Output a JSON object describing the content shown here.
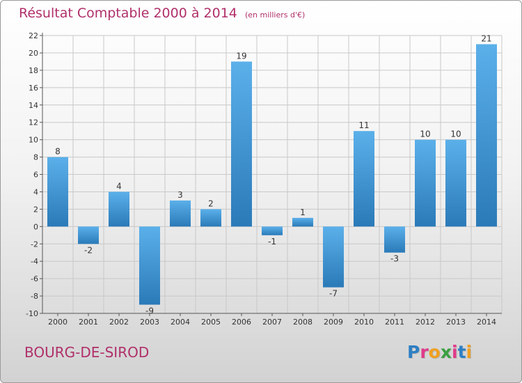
{
  "title": "Résultat Comptable 2000 à 2014",
  "subtitle": "(en milliers d'€)",
  "commune": "BOURG-DE-SIROD",
  "brand": {
    "letters": [
      "P",
      "r",
      "o",
      "x",
      "i",
      "t",
      "i"
    ],
    "colors": [
      "#2e7fc4",
      "#e03a8a",
      "#f0a020",
      "#3aa040",
      "#e03a8a",
      "#2e7fc4",
      "#f0a020"
    ]
  },
  "colors": {
    "title": "#b0306a",
    "bar_light": "#5bb0ea",
    "bar_dark": "#2a7ab8",
    "grid": "#c8c8c8",
    "axis": "#555555"
  },
  "chart_data": {
    "type": "bar",
    "title": "Résultat Comptable 2000 à 2014",
    "subtitle": "(en milliers d'€)",
    "xlabel": "",
    "ylabel": "",
    "categories": [
      "2000",
      "2001",
      "2002",
      "2003",
      "2004",
      "2005",
      "2006",
      "2007",
      "2008",
      "2009",
      "2010",
      "2011",
      "2012",
      "2013",
      "2014"
    ],
    "values": [
      8,
      -2,
      4,
      -9,
      3,
      2,
      19,
      -1,
      1,
      -7,
      11,
      -3,
      10,
      10,
      21
    ],
    "labels": [
      "8",
      "-2",
      "4",
      "-9",
      "3",
      "2",
      "19",
      "-1",
      "1",
      "-7",
      "11",
      "-3",
      "10",
      "10",
      "21"
    ],
    "ylim": [
      -10,
      22
    ],
    "yticks": [
      -10,
      -8,
      -6,
      -4,
      -2,
      0,
      2,
      4,
      6,
      8,
      10,
      12,
      14,
      16,
      18,
      20,
      22
    ],
    "grid": true
  }
}
